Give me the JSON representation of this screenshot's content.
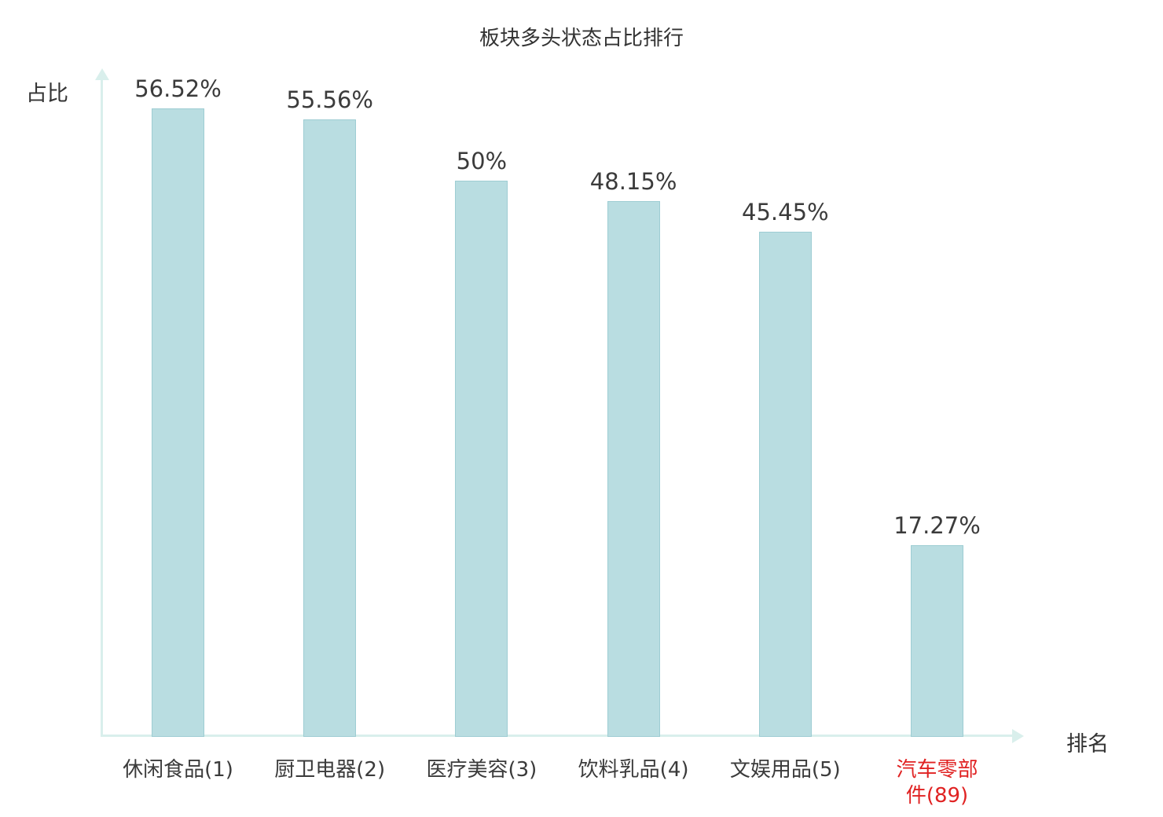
{
  "chart_data": {
    "type": "bar",
    "title": "板块多头状态占比排行",
    "ylabel": "占比",
    "xlabel": "排名",
    "categories": [
      "休闲食品(1)",
      "厨卫电器(2)",
      "医疗美容(3)",
      "饮料乳品(4)",
      "文娱用品(5)",
      "汽车零部件(89)"
    ],
    "category_lines": [
      [
        "休闲食品(1)"
      ],
      [
        "厨卫电器(2)"
      ],
      [
        "医疗美容(3)"
      ],
      [
        "饮料乳品(4)"
      ],
      [
        "文娱用品(5)"
      ],
      [
        "汽车零部",
        "件(89)"
      ]
    ],
    "values": [
      56.52,
      55.56,
      50,
      48.15,
      45.45,
      17.27
    ],
    "value_labels": [
      "56.52%",
      "55.56%",
      "50%",
      "48.15%",
      "45.45%",
      "17.27%"
    ],
    "highlight_index": 5,
    "ylim": [
      0,
      56.52
    ],
    "grid": false,
    "legend": "none",
    "colors": {
      "bar_fill": "#b9dde1",
      "bar_border": "#9ecdd3",
      "axis": "#d9efec",
      "text": "#3b3b3b",
      "highlight": "#e02222",
      "background": "#ffffff"
    }
  }
}
